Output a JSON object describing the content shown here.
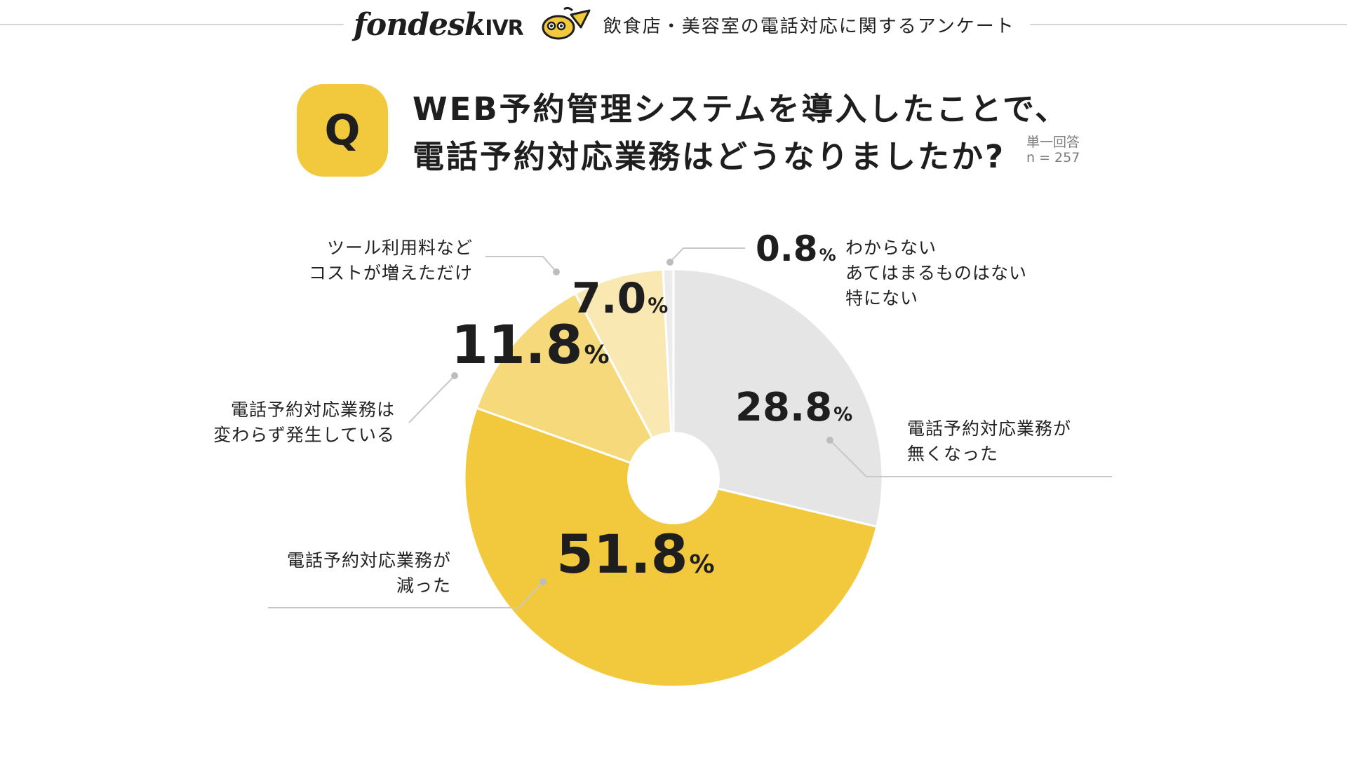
{
  "header": {
    "brand": "fondesk",
    "brand_suffix": "IVR",
    "survey_title": "飲食店・美容室の電話対応に関するアンケート"
  },
  "question": {
    "badge": "Q",
    "line1": "WEB予約管理システムを導入したことで、",
    "line2": "電話予約対応業務はどうなりましたか?",
    "answer_type": "単一回答",
    "sample": "n = 257"
  },
  "colors": {
    "accent": "#f2c83c",
    "slice_grey": "#e5e5e5",
    "slice_yellow": "#f2c83c",
    "slice_mid": "#f5d97a",
    "slice_light": "#f9e8b2",
    "slice_pale": "#ececec",
    "leader": "#c8c8c8"
  },
  "chart_data": {
    "type": "pie",
    "categories": [
      "電話予約対応業務が無くなった",
      "電話予約対応業務が減った",
      "電話予約対応業務は変わらず発生している",
      "ツール利用料などコストが増えただけ",
      "わからない あてはまるものはない 特にない"
    ],
    "values": [
      28.8,
      51.8,
      11.8,
      7.0,
      0.8
    ],
    "value_labels": [
      "28.8",
      "51.8",
      "11.8",
      "7.0",
      "0.8"
    ],
    "unit": "%",
    "label_lines": [
      [
        "電話予約対応業務が",
        "無くなった"
      ],
      [
        "電話予約対応業務が",
        "減った"
      ],
      [
        "電話予約対応業務は",
        "変わらず発生している"
      ],
      [
        "ツール利用料など",
        "コストが増えただけ"
      ],
      [
        "わからない",
        "あてはまるものはない",
        "特にない"
      ]
    ],
    "donut": true
  }
}
